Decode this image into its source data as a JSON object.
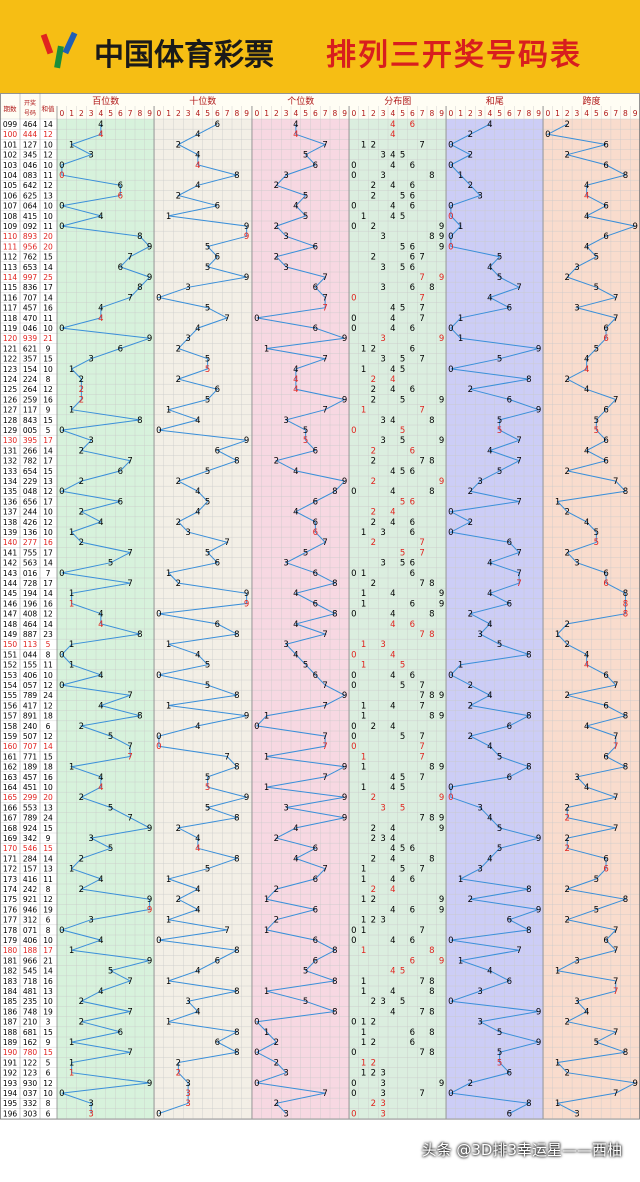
{
  "header": {
    "brand": "中国体育彩票",
    "title": "排列三开奖号码表"
  },
  "watermark": "头条 @3D排3幸运星——西柚",
  "colors": {
    "banner": "#f6be14",
    "title_red": "#d81e1e",
    "line_blue": "#3a8fd9",
    "hot_red": "#e0231f",
    "bai_bg": "#d7f2dc",
    "shi_bg": "#f3efe6",
    "ge_bg": "#f7d8e2",
    "fenbu_bg": "#dbeedf",
    "hewei_bg": "#cccdf6",
    "kuadu_bg": "#f9dccd"
  },
  "chart_data": {
    "type": "table",
    "columns": {
      "period": "期数",
      "award": "开奖号码",
      "sum": "和值"
    },
    "sections": [
      {
        "key": "bai",
        "label": "百位数"
      },
      {
        "key": "shi",
        "label": "十位数"
      },
      {
        "key": "ge",
        "label": "个位数"
      },
      {
        "key": "fenbu",
        "label": "分布图"
      },
      {
        "key": "hewei",
        "label": "和尾"
      },
      {
        "key": "kuadu",
        "label": "跨度"
      }
    ],
    "digits": [
      "0",
      "1",
      "2",
      "3",
      "4",
      "5",
      "6",
      "7",
      "8",
      "9"
    ],
    "first_period": 99,
    "draws": [
      "464",
      "444",
      "127",
      "345",
      "046",
      "083",
      "642",
      "625",
      "064",
      "415",
      "092",
      "893",
      "956",
      "762",
      "653",
      "997",
      "836",
      "707",
      "457",
      "470",
      "046",
      "939",
      "621",
      "357",
      "154",
      "224",
      "264",
      "259",
      "117",
      "843",
      "005",
      "395",
      "266",
      "782",
      "654",
      "229",
      "048",
      "656",
      "244",
      "426",
      "136",
      "277",
      "755",
      "563",
      "016",
      "728",
      "194",
      "196",
      "408",
      "464",
      "887",
      "113",
      "044",
      "155",
      "406",
      "057",
      "789",
      "417",
      "891",
      "240",
      "507",
      "707",
      "771",
      "189",
      "457",
      "451",
      "299",
      "553",
      "789",
      "924",
      "342",
      "546",
      "284",
      "157",
      "416",
      "242",
      "921",
      "946",
      "312",
      "071",
      "406",
      "188",
      "966",
      "545",
      "718",
      "481",
      "235",
      "748",
      "210",
      "681",
      "162",
      "780",
      "122",
      "123",
      "930",
      "037",
      "332",
      "303"
    ]
  }
}
